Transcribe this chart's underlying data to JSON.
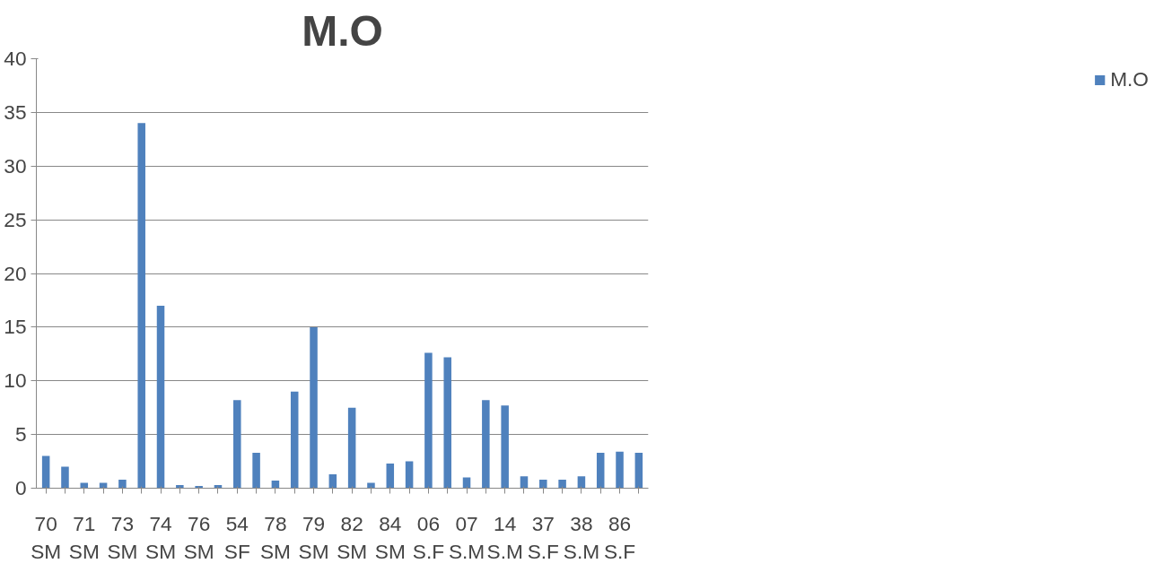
{
  "chart_data": {
    "type": "bar",
    "title": "M.O",
    "categories": [
      "70\nSM",
      null,
      "71\nSM",
      null,
      "73\nSM",
      null,
      "74\nSM",
      null,
      "76\nSM",
      null,
      "54\nSF",
      null,
      "78\nSM",
      null,
      "79\nSM",
      null,
      "82\nSM",
      null,
      "84\nSM",
      null,
      "06\nS.F",
      null,
      "07\nS.M",
      null,
      "14\nS.M",
      null,
      "37\nS.F",
      null,
      "38\nS.M",
      null,
      "86\nS.F",
      null
    ],
    "series": [
      {
        "name": "M.O",
        "color": "#4f81bd",
        "values": [
          3,
          2,
          0.5,
          0.5,
          0.8,
          34,
          17,
          0.3,
          0.2,
          0.3,
          8.2,
          3.3,
          0.7,
          9,
          15,
          1.3,
          7.5,
          0.5,
          2.3,
          2.5,
          12.6,
          12.2,
          1,
          8.2,
          7.7,
          1.1,
          0.8,
          0.8,
          1.1,
          3.3,
          3.4,
          3.3
        ]
      }
    ],
    "ylim": [
      0,
      40
    ],
    "yticks": [
      0,
      5,
      10,
      15,
      20,
      25,
      30,
      35,
      40
    ],
    "grid": "y",
    "legend": "right"
  }
}
